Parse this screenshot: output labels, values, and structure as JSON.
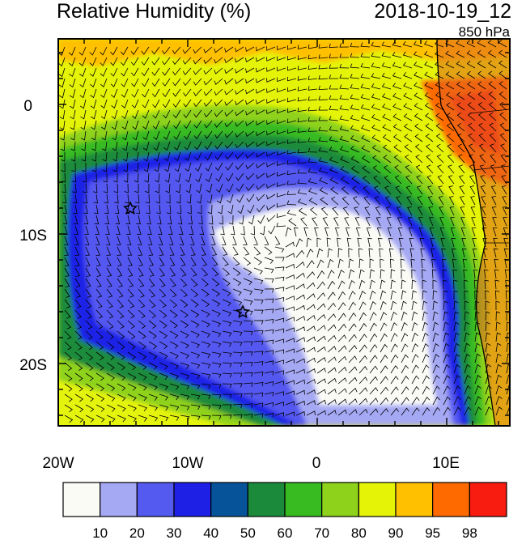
{
  "header": {
    "title": "Relative Humidity (%)",
    "datetime": "2018-10-19_12",
    "level": "850 hPa"
  },
  "axes": {
    "lon_labels": [
      "20W",
      "10W",
      "0",
      "10E"
    ],
    "lat_labels": [
      "0",
      "10S",
      "20S"
    ]
  },
  "colorbar": {
    "colors": [
      "#fbfbf6",
      "#a5a8f3",
      "#5459f0",
      "#1e20e6",
      "#07539a",
      "#1b8b3b",
      "#38bb21",
      "#8fd21b",
      "#e5f407",
      "#ffc000",
      "#ff6a00",
      "#f81b10"
    ],
    "labels": [
      "10",
      "20",
      "30",
      "40",
      "50",
      "60",
      "70",
      "80",
      "90",
      "95",
      "98"
    ]
  },
  "markers": [
    {
      "name": "station-star-west"
    },
    {
      "name": "station-star-central"
    }
  ]
}
